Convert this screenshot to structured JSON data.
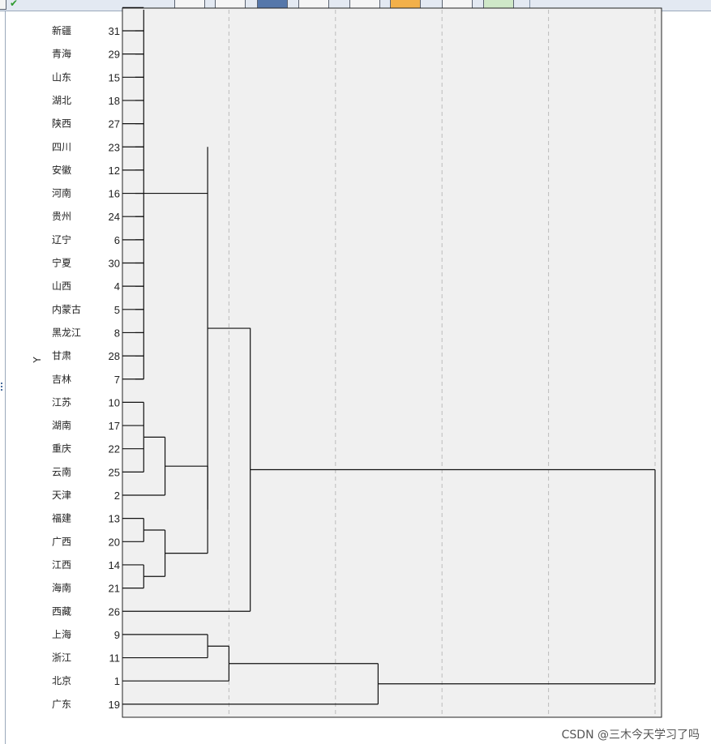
{
  "watermark": "CSDN @三木今天学习了吗",
  "chart_data": {
    "type": "dendrogram",
    "ylabel": "Y",
    "xlim": [
      0,
      25
    ],
    "grid": "vertical dashed",
    "leaves": [
      {
        "name": "新疆",
        "id": "31"
      },
      {
        "name": "青海",
        "id": "29"
      },
      {
        "name": "山东",
        "id": "15"
      },
      {
        "name": "湖北",
        "id": "18"
      },
      {
        "name": "陕西",
        "id": "27"
      },
      {
        "name": "四川",
        "id": "23"
      },
      {
        "name": "安徽",
        "id": "12"
      },
      {
        "name": "河南",
        "id": "16"
      },
      {
        "name": "贵州",
        "id": "24"
      },
      {
        "name": "辽宁",
        "id": "6"
      },
      {
        "name": "宁夏",
        "id": "30"
      },
      {
        "name": "山西",
        "id": "4"
      },
      {
        "name": "内蒙古",
        "id": "5"
      },
      {
        "name": "黑龙江",
        "id": "8"
      },
      {
        "name": "甘肃",
        "id": "28"
      },
      {
        "name": "吉林",
        "id": "7"
      },
      {
        "name": "江苏",
        "id": "10"
      },
      {
        "name": "湖南",
        "id": "17"
      },
      {
        "name": "重庆",
        "id": "22"
      },
      {
        "name": "云南",
        "id": "25"
      },
      {
        "name": "天津",
        "id": "2"
      },
      {
        "name": "福建",
        "id": "13"
      },
      {
        "name": "广西",
        "id": "20"
      },
      {
        "name": "江西",
        "id": "14"
      },
      {
        "name": "海南",
        "id": "21"
      },
      {
        "name": "西藏",
        "id": "26"
      },
      {
        "name": "上海",
        "id": "9"
      },
      {
        "name": "浙江",
        "id": "11"
      },
      {
        "name": "北京",
        "id": "1"
      },
      {
        "name": "广东",
        "id": "19"
      }
    ],
    "merges": [
      {
        "span": [
          -1,
          15
        ],
        "height": 1
      },
      {
        "span": [
          16,
          19
        ],
        "height": 1
      },
      {
        "span": [
          17.5,
          20
        ],
        "height": 2
      },
      {
        "span": [
          21,
          22
        ],
        "height": 1
      },
      {
        "span": [
          23,
          24
        ],
        "height": 1
      },
      {
        "span": [
          21.5,
          23.5
        ],
        "height": 2
      },
      {
        "span": [
          18.75,
          22.5
        ],
        "height": 4
      },
      {
        "span": [
          5,
          20.625
        ],
        "height": 4
      },
      {
        "span": [
          12.8,
          25
        ],
        "height": 6
      },
      {
        "span": [
          26,
          27
        ],
        "height": 4
      },
      {
        "span": [
          26.5,
          28
        ],
        "height": 5
      },
      {
        "span": [
          27.25,
          29
        ],
        "height": 12
      },
      {
        "span": [
          18.9,
          28.1
        ],
        "height": 25
      }
    ]
  }
}
